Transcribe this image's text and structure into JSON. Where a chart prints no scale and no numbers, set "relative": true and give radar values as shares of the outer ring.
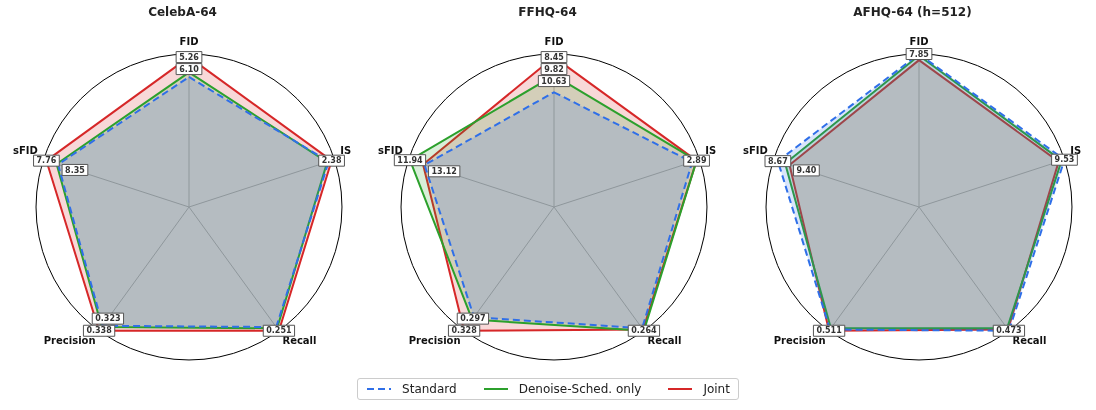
{
  "chart_data": [
    {
      "type": "radar",
      "title": "CelebA-64",
      "relative": true,
      "grid": true,
      "legend": "bottom",
      "marker": "none",
      "categories": [
        "FID",
        "IS",
        "Recall",
        "Precision",
        "sFID"
      ],
      "series": [
        {
          "name": "Standard",
          "color": "#2f6fe8",
          "line_style": "dashed",
          "values": [
            0.85,
            0.96,
            0.97,
            0.96,
            0.9
          ]
        },
        {
          "name": "Denoise-Sched. only",
          "color": "#2ca02c",
          "line_style": "solid",
          "values": [
            0.88,
            0.95,
            0.98,
            0.97,
            0.91
          ]
        },
        {
          "name": "Joint",
          "color": "#d62728",
          "line_style": "solid",
          "values": [
            0.98,
            0.98,
            1.0,
            1.0,
            0.98
          ]
        }
      ],
      "annotations": [
        {
          "text": "5.26",
          "x": "FID"
        },
        {
          "text": "6.10",
          "x": "FID"
        },
        {
          "text": "2.38",
          "x": "IS"
        },
        {
          "text": "0.251",
          "x": "Recall"
        },
        {
          "text": "0.338",
          "x": "Precision"
        },
        {
          "text": "0.323",
          "x": "Precision"
        },
        {
          "text": "7.76",
          "x": "sFID"
        },
        {
          "text": "8.35",
          "x": "sFID"
        }
      ]
    },
    {
      "type": "radar",
      "title": "FFHQ-64",
      "relative": true,
      "grid": true,
      "legend": "bottom",
      "marker": "none",
      "categories": [
        "FID",
        "IS",
        "Recall",
        "Precision",
        "sFID"
      ],
      "series": [
        {
          "name": "Standard",
          "color": "#2f6fe8",
          "line_style": "dashed",
          "values": [
            0.75,
            0.95,
            0.98,
            0.89,
            0.89
          ]
        },
        {
          "name": "Denoise-Sched. only",
          "color": "#2ca02c",
          "line_style": "solid",
          "values": [
            0.86,
            0.98,
            1.0,
            0.91,
            0.99
          ]
        },
        {
          "name": "Joint",
          "color": "#d62728",
          "line_style": "solid",
          "values": [
            0.98,
            0.98,
            0.99,
            1.0,
            0.9
          ]
        }
      ],
      "annotations": [
        {
          "text": "8.45",
          "x": "FID"
        },
        {
          "text": "9.82",
          "x": "FID"
        },
        {
          "text": "10.63",
          "x": "FID"
        },
        {
          "text": "2.89",
          "x": "IS"
        },
        {
          "text": "0.264",
          "x": "Recall"
        },
        {
          "text": "0.328",
          "x": "Precision"
        },
        {
          "text": "0.297",
          "x": "Precision"
        },
        {
          "text": "11.94",
          "x": "sFID"
        },
        {
          "text": "13.12",
          "x": "sFID"
        }
      ]
    },
    {
      "type": "radar",
      "title": "AFHQ-64 (h=512)",
      "relative": true,
      "grid": true,
      "legend": "bottom",
      "marker": "none",
      "categories": [
        "FID",
        "IS",
        "Recall",
        "Precision",
        "sFID"
      ],
      "series": [
        {
          "name": "Standard",
          "color": "#2f6fe8",
          "line_style": "dashed",
          "values": [
            1.0,
            1.0,
            1.0,
            0.99,
            0.97
          ]
        },
        {
          "name": "Denoise-Sched. only",
          "color": "#2ca02c",
          "line_style": "solid",
          "values": [
            0.99,
            0.98,
            0.98,
            0.98,
            0.92
          ]
        },
        {
          "name": "Joint",
          "color": "#d62728",
          "line_style": "solid",
          "values": [
            0.96,
            0.96,
            0.99,
            1.0,
            0.89
          ]
        }
      ],
      "annotations": [
        {
          "text": "7.85",
          "x": "FID"
        },
        {
          "text": "9.53",
          "x": "IS"
        },
        {
          "text": "0.473",
          "x": "Recall"
        },
        {
          "text": "0.511",
          "x": "Precision"
        },
        {
          "text": "8.67",
          "x": "sFID"
        },
        {
          "text": "9.40",
          "x": "sFID"
        }
      ]
    }
  ]
}
